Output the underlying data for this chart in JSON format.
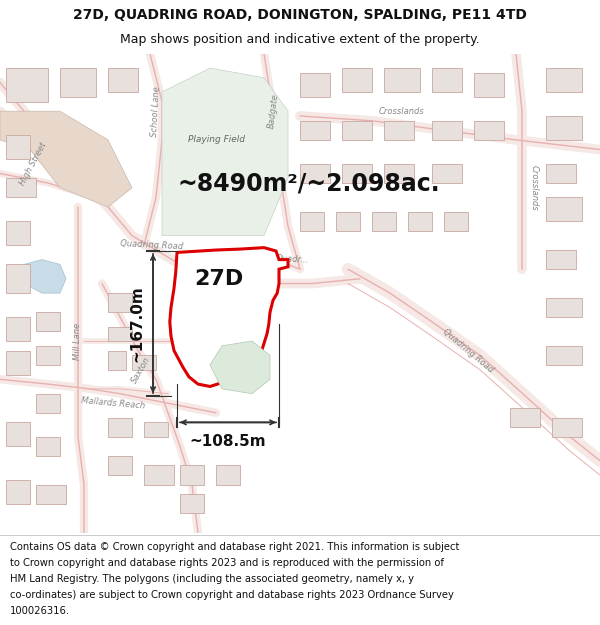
{
  "title_line1": "27D, QUADRING ROAD, DONINGTON, SPALDING, PE11 4TD",
  "title_line2": "Map shows position and indicative extent of the property.",
  "area_text": "~8490m²/~2.098ac.",
  "label_27D": "27D",
  "dim_horizontal": "~108.5m",
  "dim_vertical": "~167.0m",
  "footer_lines": [
    "Contains OS data © Crown copyright and database right 2021. This information is subject",
    "to Crown copyright and database rights 2023 and is reproduced with the permission of",
    "HM Land Registry. The polygons (including the associated geometry, namely x, y",
    "co-ordinates) are subject to Crown copyright and database rights 2023 Ordnance Survey",
    "100026316."
  ],
  "map_bg_color": "#ffffff",
  "road_fill_color": "#f5e8e5",
  "road_edge_color": "#e8b0b0",
  "property_fill": "#ffffff",
  "property_edge": "#dd0000",
  "title_bg": "#ffffff",
  "footer_bg": "#ffffff",
  "building_fill": "#e8e0dc",
  "building_edge": "#c8a8a0",
  "green_field_fill": "#e8f0e8",
  "green_field_edge": "#c0ccc0",
  "green_pond_fill": "#dceadc",
  "blue_pond_fill": "#c8dce8",
  "blue_pond_edge": "#a0c0d0",
  "arrow_color": "#333333",
  "label_color": "#333333",
  "road_label_color": "#888888",
  "title_fontsize": 10,
  "subtitle_fontsize": 9,
  "area_fontsize": 17,
  "label_fontsize": 16,
  "dim_fontsize": 11,
  "footer_fontsize": 7.2,
  "road_label_fontsize": 6
}
